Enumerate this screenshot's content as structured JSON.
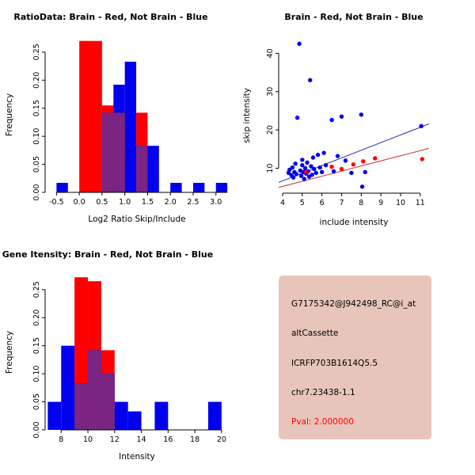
{
  "window": {
    "background": "#FFFFFF"
  },
  "info_panel": {
    "bg_color": "#E7C5BA",
    "lines": [
      "G7175342@J942498_RC@i_at",
      "altCassette",
      "ICRFP703B1614Q5.5",
      "chr7.23438-1.1"
    ],
    "pval": "Pval: 2.000000",
    "pval_color": "#FF0000"
  },
  "chart_data": [
    {
      "id": "ratio",
      "type": "bar",
      "title": "RatioData: Brain - Red, Not Brain - Blue",
      "xlabel": "Log2 Ratio Skip/Include",
      "ylabel": "Frequency",
      "xlim": [
        -0.75,
        3.3
      ],
      "ylim": [
        0,
        0.278
      ],
      "xticks": [
        -0.5,
        0,
        0.5,
        1,
        1.5,
        2,
        2.5,
        3
      ],
      "xtick_labels": [
        "-0.5",
        "0.0",
        "0.5",
        "1.0",
        "1.5",
        "2.0",
        "2.5",
        "3.0"
      ],
      "yticks": [
        0,
        0.05,
        0.1,
        0.15,
        0.2,
        0.25
      ],
      "ytick_labels": [
        "0.00",
        "0.05",
        "0.10",
        "0.15",
        "0.20",
        "0.25"
      ],
      "bin_width": 0.25,
      "overlap_color": "#7B2482",
      "series": [
        {
          "name": "Brain",
          "color": "#FF0000",
          "bars": [
            [
              0,
              0.27
            ],
            [
              0.25,
              0.27
            ],
            [
              0.5,
              0.155
            ],
            [
              0.75,
              0.142
            ],
            [
              1.25,
              0.142
            ]
          ]
        },
        {
          "name": "Not Brain",
          "color": "#0000EE",
          "bars": [
            [
              -0.5,
              0.017
            ],
            [
              0.5,
              0.142
            ],
            [
              0.75,
              0.192
            ],
            [
              1.0,
              0.233
            ],
            [
              1.25,
              0.083
            ],
            [
              1.5,
              0.083
            ],
            [
              2.0,
              0.017
            ],
            [
              2.5,
              0.017
            ],
            [
              3.0,
              0.017
            ]
          ]
        }
      ]
    },
    {
      "id": "scatter",
      "type": "scatter",
      "title": "Brain - Red, Not Brain - Blue",
      "xlabel": "include intensity",
      "ylabel": "skip intensity",
      "xlim": [
        3.8,
        11.45
      ],
      "ylim": [
        3.5,
        44
      ],
      "xticks": [
        4,
        5,
        6,
        7,
        8,
        9,
        10,
        11
      ],
      "xtick_labels": [
        "4",
        "5",
        "6",
        "7",
        "8",
        "9",
        "10",
        "11"
      ],
      "yticks": [
        10,
        20,
        30,
        40
      ],
      "ytick_labels": [
        "10",
        "20",
        "30",
        "40"
      ],
      "series": [
        {
          "name": "Not Brain",
          "color": "#0000EE",
          "points": [
            [
              4.3,
              8.8
            ],
            [
              4.35,
              9.6
            ],
            [
              4.45,
              8.2
            ],
            [
              4.5,
              10.2
            ],
            [
              4.55,
              7.6
            ],
            [
              4.6,
              9.0
            ],
            [
              4.65,
              11.2
            ],
            [
              4.7,
              8.5
            ],
            [
              4.75,
              23.2
            ],
            [
              4.85,
              42.5
            ],
            [
              4.9,
              9.4
            ],
            [
              4.95,
              8.0
            ],
            [
              5.0,
              10.8
            ],
            [
              5.0,
              12.2
            ],
            [
              5.05,
              9.0
            ],
            [
              5.1,
              7.2
            ],
            [
              5.15,
              10.0
            ],
            [
              5.2,
              8.6
            ],
            [
              5.25,
              11.5
            ],
            [
              5.3,
              9.2
            ],
            [
              5.35,
              7.8
            ],
            [
              5.4,
              33.0
            ],
            [
              5.45,
              10.5
            ],
            [
              5.5,
              8.3
            ],
            [
              5.55,
              12.8
            ],
            [
              5.6,
              9.8
            ],
            [
              5.7,
              8.8
            ],
            [
              5.8,
              13.5
            ],
            [
              5.9,
              10.2
            ],
            [
              6.0,
              9.0
            ],
            [
              6.1,
              14.0
            ],
            [
              6.2,
              10.8
            ],
            [
              6.5,
              22.6
            ],
            [
              6.6,
              9.2
            ],
            [
              6.8,
              13.2
            ],
            [
              7.0,
              23.5
            ],
            [
              7.2,
              12.0
            ],
            [
              7.5,
              8.8
            ],
            [
              8.0,
              24.0
            ],
            [
              8.05,
              5.2
            ],
            [
              8.2,
              9.0
            ],
            [
              11.05,
              21.0
            ]
          ]
        },
        {
          "name": "Brain",
          "color": "#FF0000",
          "points": [
            [
              5.2,
              9.0
            ],
            [
              6.5,
              10.4
            ],
            [
              7.0,
              9.8
            ],
            [
              7.6,
              11.0
            ],
            [
              8.1,
              11.8
            ],
            [
              8.7,
              12.6
            ],
            [
              11.1,
              12.4
            ]
          ]
        }
      ],
      "lines": [
        {
          "name": "not-brain-fit",
          "color": "#2222AA",
          "from": [
            3.8,
            6.3
          ],
          "to": [
            11.45,
            21.6
          ]
        },
        {
          "name": "brain-fit",
          "color": "#CC3333",
          "from": [
            3.8,
            5.0
          ],
          "to": [
            11.45,
            15.2
          ]
        }
      ]
    },
    {
      "id": "gene",
      "type": "bar",
      "title": "Gene Itensity: Brain - Red, Not Brain - Blue",
      "xlabel": "Intensity",
      "ylabel": "Frequency",
      "xlim": [
        6.8,
        20.6
      ],
      "ylim": [
        0,
        0.278
      ],
      "xticks": [
        8,
        10,
        12,
        14,
        16,
        18,
        20
      ],
      "xtick_labels": [
        "8",
        "10",
        "12",
        "14",
        "16",
        "18",
        "20"
      ],
      "yticks": [
        0,
        0.05,
        0.1,
        0.15,
        0.2,
        0.25
      ],
      "ytick_labels": [
        "0.00",
        "0.05",
        "0.10",
        "0.15",
        "0.20",
        "0.25"
      ],
      "bin_width": 1,
      "overlap_color": "#7B2482",
      "series": [
        {
          "name": "Brain",
          "color": "#FF0000",
          "bars": [
            [
              9,
              0.272
            ],
            [
              10,
              0.265
            ],
            [
              11,
              0.142
            ]
          ]
        },
        {
          "name": "Not Brain",
          "color": "#0000EE",
          "bars": [
            [
              7,
              0.05
            ],
            [
              8,
              0.15
            ],
            [
              9,
              0.083
            ],
            [
              10,
              0.142
            ],
            [
              11,
              0.1
            ],
            [
              12,
              0.05
            ],
            [
              13,
              0.033
            ],
            [
              15,
              0.05
            ],
            [
              19,
              0.05
            ]
          ]
        }
      ]
    }
  ]
}
